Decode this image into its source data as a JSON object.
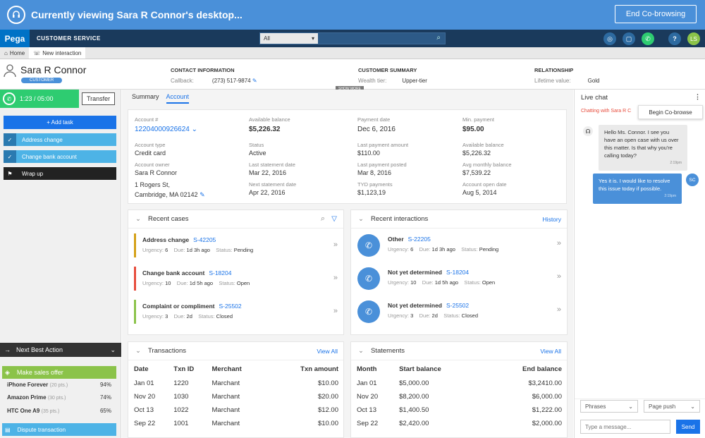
{
  "cobrowse": {
    "title": "Currently viewing Sara R Connor's desktop...",
    "end_label": "End Co-browsing"
  },
  "header": {
    "logo": "Pega",
    "app_name": "CUSTOMER SERVICE",
    "search_scope": "All",
    "user_initials": "LS"
  },
  "tabs": [
    {
      "label": "Home"
    },
    {
      "label": "New interaction"
    }
  ],
  "profile": {
    "name": "Sara R Connor",
    "badge": "CUSTOMER",
    "contact": {
      "heading": "CONTACT INFORMATION",
      "label": "Callback:",
      "value": "(273) 517-9874"
    },
    "summary": {
      "heading": "CUSTOMER SUMMARY",
      "label": "Wealth tier:",
      "value": "Upper-tier"
    },
    "relationship": {
      "heading": "RELATIONSHIP",
      "label": "Lifetime value:",
      "value": "Gold"
    },
    "show_more": "SHOW MORE"
  },
  "left": {
    "timer": "1:23 / 05:00",
    "transfer": "Transfer",
    "add_task": "+ Add task",
    "tasks": [
      {
        "label": "Address change"
      },
      {
        "label": "Change bank account"
      },
      {
        "label": "Wrap up"
      }
    ],
    "nba_title": "Next Best Action",
    "make_offer": "Make sales offer",
    "offers": [
      {
        "name": "iPhone Forever",
        "pts": "(20 pts.)",
        "pct": "94%"
      },
      {
        "name": "Amazon Prime",
        "pts": "(30 pts.)",
        "pct": "74%"
      },
      {
        "name": "HTC One A9",
        "pts": "(35 pts.)",
        "pct": "65%"
      }
    ],
    "dispute": "Dispute transaction"
  },
  "main": {
    "subtabs": [
      "Summary",
      "Account"
    ],
    "account": {
      "acct_label": "Account #",
      "acct_value": "12204000926624",
      "type_label": "Account type",
      "type_value": "Credit card",
      "owner_label": "Account owner",
      "owner_value": "Sara R Connor",
      "addr1": "1 Rogers St,",
      "addr2": "Cambridge, MA 02142",
      "avail_label": "Available balance",
      "avail_value": "$5,226.32",
      "status_label": "Status",
      "status_value": "Active",
      "last_stmt_label": "Last statement date",
      "last_stmt_value": "Mar 22, 2016",
      "next_stmt_label": "Next statement date",
      "next_stmt_value": "Apr 22, 2016",
      "pay_date_label": "Payment date",
      "pay_date_value": "Dec 6, 2016",
      "last_pay_label": "Last payment amount",
      "last_pay_value": "$110.00",
      "last_posted_label": "Last payment posted",
      "last_posted_value": "Mar 8, 2016",
      "tyd_label": "TYD payments",
      "tyd_value": "$1,123,19",
      "min_pay_label": "Min. payment",
      "min_pay_value": "$95.00",
      "avail2_label": "Available balance",
      "avail2_value": "$5,226.32",
      "avg_label": "Avg monthly balance",
      "avg_value": "$7,539.22",
      "open_label": "Account open date",
      "open_value": "Aug 5, 2014"
    },
    "recent_cases": {
      "title": "Recent cases",
      "items": [
        {
          "title": "Address change",
          "id": "S-42205",
          "urgency": "6",
          "due": "1d 3h ago",
          "status": "Pending",
          "color": "#d4a017"
        },
        {
          "title": "Change bank account",
          "id": "S-18204",
          "urgency": "10",
          "due": "1d 5h ago",
          "status": "Open",
          "color": "#e74c3c"
        },
        {
          "title": "Complaint or compliment",
          "id": "S-25502",
          "urgency": "3",
          "due": "2d",
          "status": "Closed",
          "color": "#8bc34a"
        }
      ]
    },
    "recent_interactions": {
      "title": "Recent interactions",
      "link": "History",
      "items": [
        {
          "title": "Other",
          "id": "S-22205",
          "urgency": "6",
          "due": "1d 3h ago",
          "status": "Pending"
        },
        {
          "title": "Not yet determined",
          "id": "S-18204",
          "urgency": "10",
          "due": "1d 5h ago",
          "status": "Open"
        },
        {
          "title": "Not yet determined",
          "id": "S-25502",
          "urgency": "3",
          "due": "2d",
          "status": "Closed"
        }
      ]
    },
    "transactions": {
      "title": "Transactions",
      "link": "View All",
      "headers": [
        "Date",
        "Txn ID",
        "Merchant",
        "Txn amount"
      ],
      "rows": [
        [
          "Jan 01",
          "1220",
          "Marchant",
          "$10.00"
        ],
        [
          "Nov 20",
          "1030",
          "Marchant",
          "$20.00"
        ],
        [
          "Oct 13",
          "1022",
          "Marchant",
          "$12.00"
        ],
        [
          "Sep 22",
          "1001",
          "Marchant",
          "$10.00"
        ]
      ]
    },
    "statements": {
      "title": "Statements",
      "link": "View All",
      "headers": [
        "Month",
        "Start balance",
        "End balance"
      ],
      "rows": [
        [
          "Jan 01",
          "$5,000.00",
          "$3,2410.00"
        ],
        [
          "Nov 20",
          "$8,200.00",
          "$6,000.00"
        ],
        [
          "Oct 13",
          "$1,400.50",
          "$1,222.00"
        ],
        [
          "Sep 22",
          "$2,420.00",
          "$2,000.00"
        ]
      ]
    }
  },
  "chat": {
    "title": "Live chat",
    "subtitle": "Chatting with Sara R C",
    "begin_cobrowse": "Begin Co-browse",
    "msg1": "Hello Ms. Connor. I see you have an open case with us over this matter. Is that why you're calling today?",
    "msg1_time": "2:19pm",
    "msg2": "Yes it is. I would like to resolve this issue today if possible.",
    "msg2_time": "2:19pm",
    "customer_initials": "SC",
    "phrases": "Phrases",
    "page_push": "Page push",
    "placeholder": "Type a message...",
    "send": "Send"
  }
}
